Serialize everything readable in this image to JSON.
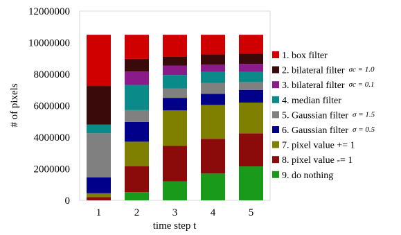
{
  "chart_data": {
    "type": "bar",
    "stacked": true,
    "title": "",
    "xlabel": "time step t",
    "ylabel": "# of pixels",
    "ylim": [
      0,
      12000000
    ],
    "yticks": [
      "0",
      "2000000",
      "4000000",
      "6000000",
      "8000000",
      "10000000",
      "12000000"
    ],
    "grid": false,
    "legend_position": "right",
    "categories": [
      "1",
      "2",
      "3",
      "4",
      "5"
    ],
    "series": [
      {
        "name": "9. do nothing",
        "sub": "",
        "color": "#1a9a1a",
        "values": [
          0,
          520000,
          1200000,
          1700000,
          2150000
        ]
      },
      {
        "name": "8. pixel value -= 1",
        "sub": "",
        "color": "#8b0a0a",
        "values": [
          200000,
          1650000,
          2250000,
          2200000,
          2100000
        ]
      },
      {
        "name": "7. pixel value += 1",
        "sub": "",
        "color": "#808000",
        "values": [
          250000,
          1550000,
          2250000,
          2150000,
          1950000
        ]
      },
      {
        "name": "6. Gaussian filter",
        "sub": "σ = 0.5",
        "color": "#00008b",
        "values": [
          1000000,
          1250000,
          800000,
          700000,
          800000
        ]
      },
      {
        "name": "5. Gaussian filter",
        "sub": "σ = 1.5",
        "color": "#808080",
        "values": [
          2800000,
          750000,
          600000,
          700000,
          500000
        ]
      },
      {
        "name": "4. median filter",
        "sub": "",
        "color": "#0b8a8a",
        "values": [
          550000,
          1600000,
          850000,
          700000,
          650000
        ]
      },
      {
        "name": "3. bilateral filter",
        "sub": "σc = 0.1",
        "color": "#8b1a8b",
        "values": [
          0,
          850000,
          600000,
          450000,
          500000
        ]
      },
      {
        "name": "2. bilateral filter",
        "sub": "σc = 1.0",
        "color": "#3a0a0a",
        "values": [
          2450000,
          800000,
          550000,
          650000,
          650000
        ]
      },
      {
        "name": "1. box filter",
        "sub": "",
        "color": "#d00000",
        "values": [
          3250000,
          1530000,
          1400000,
          1250000,
          1200000
        ]
      }
    ]
  }
}
